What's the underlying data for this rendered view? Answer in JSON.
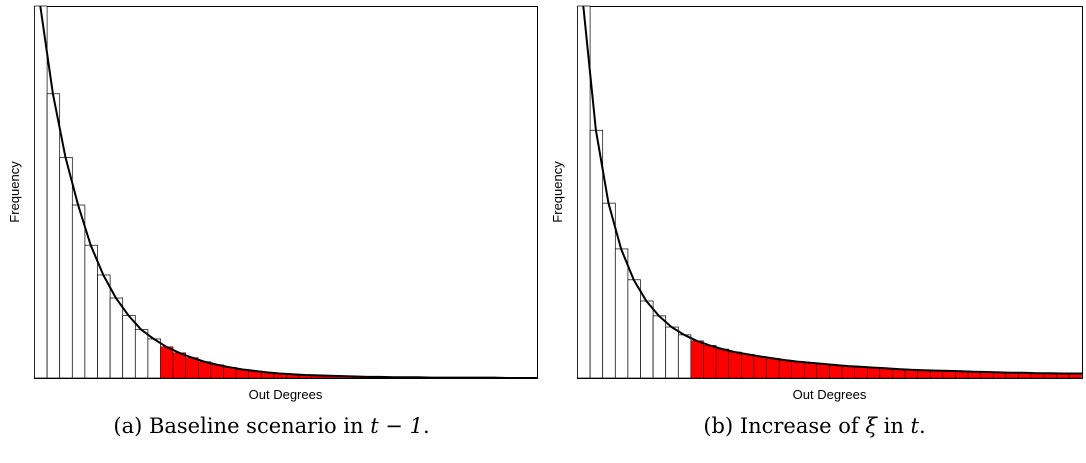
{
  "figures": [
    {
      "caption_prefix": "(a) Baseline scenario in ",
      "caption_math": "t − 1",
      "caption_suffix": ".",
      "chart_data": {
        "type": "bar",
        "xlabel": "Out Degrees",
        "ylabel": "Frequency",
        "grid": false,
        "ticks": false,
        "colors": {
          "high": "#ff0000",
          "low": "#ffffff",
          "edge": "#000000",
          "curve": "#000000"
        },
        "ylim": [
          0,
          1
        ],
        "values": [
          1.0,
          0.764,
          0.593,
          0.465,
          0.357,
          0.277,
          0.215,
          0.168,
          0.13,
          0.105,
          0.084,
          0.068,
          0.055,
          0.044,
          0.036,
          0.029,
          0.023,
          0.019,
          0.015,
          0.012,
          0.01,
          0.008,
          0.007,
          0.006,
          0.005,
          0.004,
          0.003,
          0.003,
          0.002,
          0.002,
          0.002,
          0.001,
          0.001,
          0.001,
          0.001,
          0.001,
          0.001,
          0.0,
          0.0,
          0.0
        ],
        "highlight_from_index": 10,
        "curve": "exponential decay"
      }
    },
    {
      "caption_prefix": "(b) Increase of ",
      "caption_math": "ξ",
      "caption_mid": " in ",
      "caption_math2": "t",
      "caption_suffix": ".",
      "chart_data": {
        "type": "bar",
        "xlabel": "Out Degrees",
        "ylabel": "Frequency",
        "grid": false,
        "ticks": false,
        "colors": {
          "high": "#ff0000",
          "low": "#ffffff",
          "edge": "#000000",
          "curve": "#000000"
        },
        "ylim": [
          0,
          1
        ],
        "values": [
          1.0,
          0.666,
          0.47,
          0.347,
          0.264,
          0.207,
          0.167,
          0.137,
          0.116,
          0.1,
          0.088,
          0.078,
          0.07,
          0.064,
          0.058,
          0.053,
          0.048,
          0.044,
          0.041,
          0.038,
          0.035,
          0.032,
          0.03,
          0.028,
          0.026,
          0.024,
          0.022,
          0.021,
          0.02,
          0.019,
          0.018,
          0.017,
          0.016,
          0.015,
          0.014,
          0.014,
          0.013,
          0.013,
          0.012,
          0.012
        ],
        "highlight_from_index": 9,
        "curve": "heavy-tailed decay"
      }
    }
  ]
}
